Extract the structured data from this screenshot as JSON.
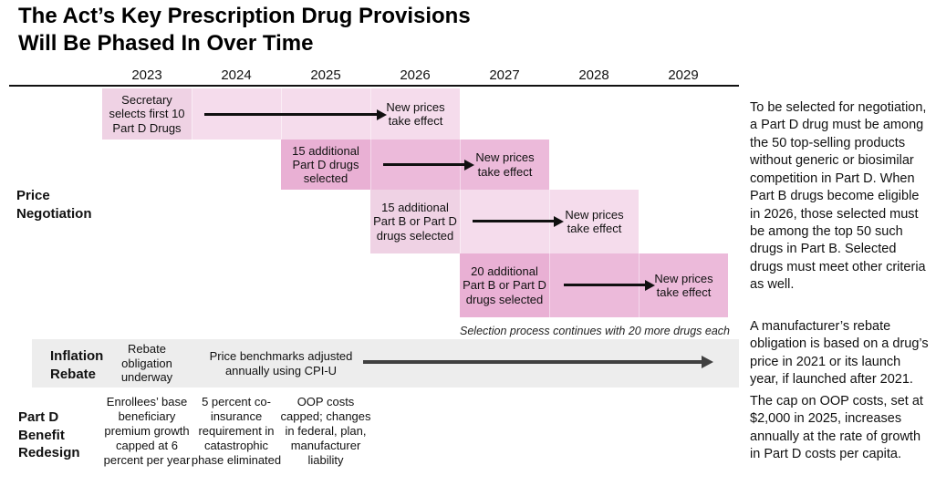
{
  "title": {
    "line1": "The Act’s Key Prescription Drug Provisions",
    "line2": "Will Be Phased In Over Time"
  },
  "timeline": {
    "years": [
      "2023",
      "2024",
      "2025",
      "2026",
      "2027",
      "2028",
      "2029"
    ]
  },
  "price_negotiation": {
    "label": "Price Negotiation",
    "rounds": [
      {
        "selection": "Secretary selects first 10 Part D Drugs",
        "selection_year": "2023",
        "result": "New prices take effect",
        "result_year": "2026"
      },
      {
        "selection": "15 additional Part D drugs selected",
        "selection_year": "2025",
        "result": "New prices take effect",
        "result_year": "2027"
      },
      {
        "selection": "15 additional Part B or Part D drugs selected",
        "selection_year": "2026",
        "result": "New prices take effect",
        "result_year": "2028"
      },
      {
        "selection": "20 additional Part B or Part D drugs selected",
        "selection_year": "2027",
        "result": "New prices take effect",
        "result_year": "2029"
      }
    ],
    "note": "Selection process continues with 20 more drugs each year"
  },
  "inflation_rebate": {
    "label": "Inflation Rebate",
    "milestones": [
      "Rebate obligation underway",
      "Price benchmarks adjusted annually using CPI-U"
    ]
  },
  "part_d_redesign": {
    "label": "Part D Benefit Redesign",
    "milestones": [
      "Enrollees’ base beneficiary premium growth capped at 6 percent per year",
      "5 percent co-insurance requirement in catastrophic phase eliminated",
      "OOP costs capped; changes in federal, plan, manufacturer liability"
    ]
  },
  "sidebar": {
    "paragraphs": [
      "To be selected for negotiation, a Part D drug must be among the 50 top-selling products without generic or biosimilar competition in Part D. When Part B drugs become eligible in 2026, those selected must be among the top 50 such drugs in Part B. Selected drugs must meet other criteria as well.",
      "A manufacturer’s rebate obligation is based on a drug’s price in 2021 or its launch year, if launched after 2021.",
      "The cap on OOP costs, set at $2,000 in 2025, increases annually at the rate of growth in Part D costs per capita."
    ]
  },
  "colors": {
    "band_light": "#f5dcec",
    "band_light_label": "#efd2e4",
    "band_dark": "#ecbada",
    "band_dark_label": "#e9b0d4",
    "band_gray": "#ededed",
    "arrow_black": "#101010",
    "arrow_gray": "#404040"
  }
}
